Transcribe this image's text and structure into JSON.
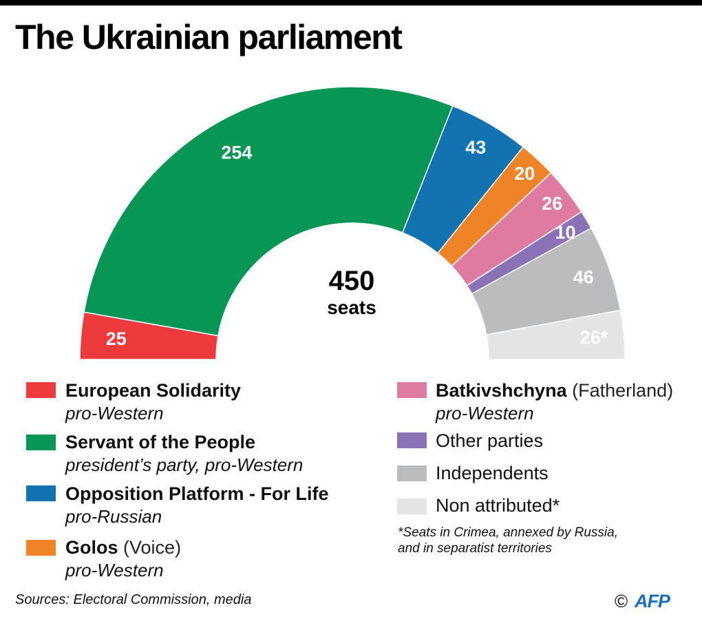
{
  "title": "The Ukrainian parliament",
  "center": {
    "total": "450",
    "unit": "seats"
  },
  "chart_data": {
    "type": "pie",
    "subtype": "hemicycle",
    "title": "The Ukrainian parliament",
    "total_seats": 450,
    "categories": [
      "European Solidarity",
      "Servant of the People",
      "Opposition Platform - For Life",
      "Golos",
      "Batkivshchyna",
      "Other parties",
      "Independents",
      "Non attributed"
    ],
    "values": [
      25,
      254,
      43,
      20,
      26,
      10,
      46,
      26
    ],
    "labels": [
      "25",
      "254",
      "43",
      "20",
      "26",
      "10",
      "46",
      "26*"
    ],
    "colors": [
      "#ee3a3c",
      "#079656",
      "#1273b0",
      "#ee8327",
      "#df7aa0",
      "#8a72b6",
      "#bbbcbe",
      "#e4e4e4"
    ],
    "label_colors": [
      "#ffffff",
      "#ffffff",
      "#ffffff",
      "#ffffff",
      "#ffffff",
      "#ffffff",
      "#ffffff",
      "#111111"
    ],
    "legend_placement": "bottom"
  },
  "legend": {
    "left": [
      {
        "name": "European Solidarity",
        "paren": "",
        "sub": "pro-Western",
        "color": "#ee3a3c"
      },
      {
        "name": "Servant of the People",
        "paren": "",
        "sub": "president’s party, pro-Western",
        "color": "#079656"
      },
      {
        "name": "Opposition Platform - For Life",
        "paren": "",
        "sub": "pro-Russian",
        "color": "#1273b0"
      },
      {
        "name": "Golos",
        "paren": "(Voice)",
        "sub": "pro-Western",
        "color": "#ee8327"
      }
    ],
    "right": [
      {
        "name": "Batkivshchyna",
        "paren": "(Fatherland)",
        "sub": "pro-Western",
        "color": "#df7aa0"
      },
      {
        "name": "Other parties",
        "color": "#8a72b6"
      },
      {
        "name": "Independents",
        "color": "#bbbcbe"
      },
      {
        "name": "Non attributed*",
        "color": "#e4e4e4"
      }
    ]
  },
  "footnote": {
    "line1": "*Seats in Crimea, annexed by Russia,",
    "line2": "and in separatist territories"
  },
  "source": "Sources:  Electoral Commission, media",
  "credit": {
    "symbol": "©",
    "agency": "AFP"
  }
}
